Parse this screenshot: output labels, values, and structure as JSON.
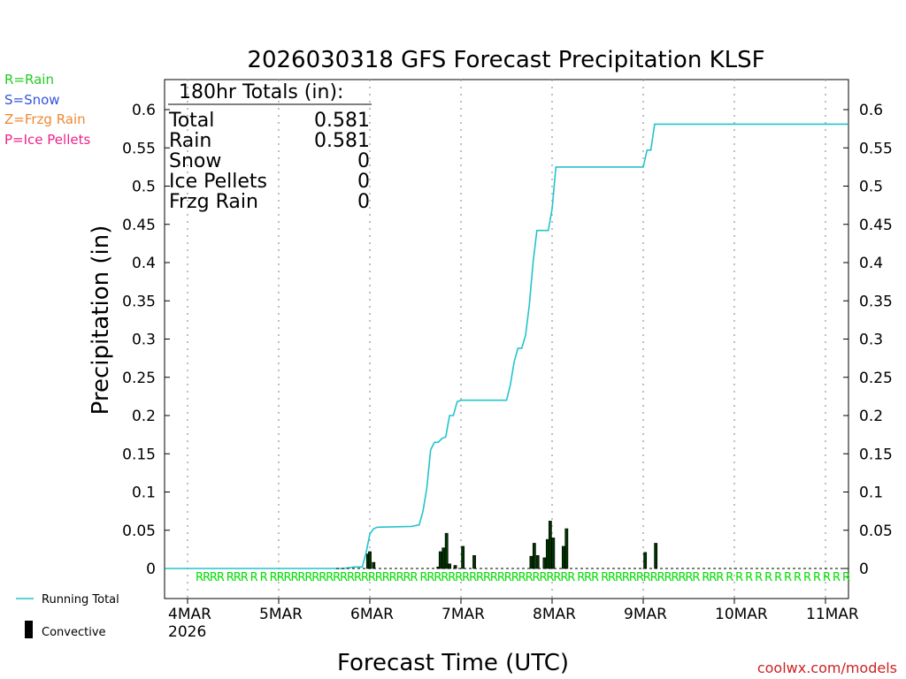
{
  "chart_data": {
    "type": "bar+line",
    "title": "2026030318 GFS Forecast Precipitation KLSF",
    "xlabel": "Forecast Time (UTC)",
    "ylabel": "Precipitation (in)",
    "ylim": [
      -0.04,
      0.64
    ],
    "y_ticks": [
      "0",
      "0.05",
      "0.1",
      "0.15",
      "0.2",
      "0.25",
      "0.3",
      "0.35",
      "0.4",
      "0.45",
      "0.5",
      "0.55",
      "0.6"
    ],
    "x_unit": "forecast hour (0 = 2026-03-03 18Z)",
    "xlim": [
      0,
      180
    ],
    "x_ticks": [
      {
        "hour": 6,
        "label": "4MAR",
        "sub": "2026"
      },
      {
        "hour": 30,
        "label": "5MAR",
        "sub": ""
      },
      {
        "hour": 54,
        "label": "6MAR",
        "sub": ""
      },
      {
        "hour": 78,
        "label": "7MAR",
        "sub": ""
      },
      {
        "hour": 102,
        "label": "8MAR",
        "sub": ""
      },
      {
        "hour": 126,
        "label": "9MAR",
        "sub": ""
      },
      {
        "hour": 150,
        "label": "10MAR",
        "sub": ""
      },
      {
        "hour": 174,
        "label": "11MAR",
        "sub": ""
      }
    ],
    "legend_left": [
      {
        "label": "R=Rain",
        "color": "#22cc22"
      },
      {
        "label": "S=Snow",
        "color": "#3355dd"
      },
      {
        "label": "Z=Frzg Rain",
        "color": "#ee8833"
      },
      {
        "label": "P=Ice Pellets",
        "color": "#ee2288"
      }
    ],
    "series_legend": {
      "running_total": "Running Total",
      "convective": "Convective"
    },
    "totals_box": {
      "header": "180hr Totals (in):",
      "rows": [
        {
          "label": "Total",
          "value": "0.581"
        },
        {
          "label": "Rain",
          "value": "0.581"
        },
        {
          "label": "Snow",
          "value": "0"
        },
        {
          "label": "Ice Pellets",
          "value": "0"
        },
        {
          "label": "Frzg Rain",
          "value": "0"
        }
      ]
    },
    "running_total": [
      [
        0,
        0
      ],
      [
        47,
        0
      ],
      [
        50,
        0.002
      ],
      [
        52,
        0.002
      ],
      [
        53,
        0.02
      ],
      [
        54,
        0.045
      ],
      [
        55,
        0.052
      ],
      [
        56,
        0.054
      ],
      [
        65,
        0.055
      ],
      [
        67,
        0.057
      ],
      [
        68,
        0.075
      ],
      [
        69,
        0.105
      ],
      [
        70,
        0.155
      ],
      [
        71,
        0.165
      ],
      [
        72,
        0.165
      ],
      [
        73,
        0.17
      ],
      [
        74,
        0.172
      ],
      [
        75,
        0.2
      ],
      [
        76,
        0.2
      ],
      [
        77,
        0.218
      ],
      [
        78,
        0.22
      ],
      [
        90,
        0.22
      ],
      [
        91,
        0.24
      ],
      [
        92,
        0.27
      ],
      [
        93,
        0.288
      ],
      [
        94,
        0.288
      ],
      [
        95,
        0.305
      ],
      [
        96,
        0.345
      ],
      [
        97,
        0.4
      ],
      [
        98,
        0.442
      ],
      [
        101,
        0.442
      ],
      [
        102,
        0.47
      ],
      [
        103,
        0.525
      ],
      [
        126,
        0.525
      ],
      [
        127,
        0.547
      ],
      [
        128,
        0.547
      ],
      [
        129,
        0.581
      ],
      [
        180,
        0.581
      ]
    ],
    "bars": [
      {
        "hour": 53.5,
        "value": 0.019
      },
      {
        "hour": 54.0,
        "value": 0.022
      },
      {
        "hour": 55.0,
        "value": 0.008
      },
      {
        "hour": 72.0,
        "value": 0.002
      },
      {
        "hour": 72.6,
        "value": 0.022
      },
      {
        "hour": 73.4,
        "value": 0.027
      },
      {
        "hour": 74.2,
        "value": 0.046
      },
      {
        "hour": 75.0,
        "value": 0.006
      },
      {
        "hour": 76.5,
        "value": 0.004
      },
      {
        "hour": 78.5,
        "value": 0.029
      },
      {
        "hour": 81.5,
        "value": 0.017
      },
      {
        "hour": 96.5,
        "value": 0.016
      },
      {
        "hour": 97.3,
        "value": 0.033
      },
      {
        "hour": 98.2,
        "value": 0.017
      },
      {
        "hour": 100.0,
        "value": 0.014
      },
      {
        "hour": 100.8,
        "value": 0.038
      },
      {
        "hour": 101.5,
        "value": 0.062
      },
      {
        "hour": 102.3,
        "value": 0.04
      },
      {
        "hour": 105.0,
        "value": 0.029
      },
      {
        "hour": 105.8,
        "value": 0.052
      },
      {
        "hour": 126.5,
        "value": 0.021
      },
      {
        "hour": 129.3,
        "value": 0.033
      }
    ],
    "ptype_row": "RRRR  RRR R R RRRRRRRRRRRRRRRRRRRRR RRRRRRRRRRRRRRRRRRRRRR RRR RRRRRRRRRRRRRR RRR R R R R R  R  R    R R R R R  R",
    "credit": "coolwx.com/models"
  }
}
